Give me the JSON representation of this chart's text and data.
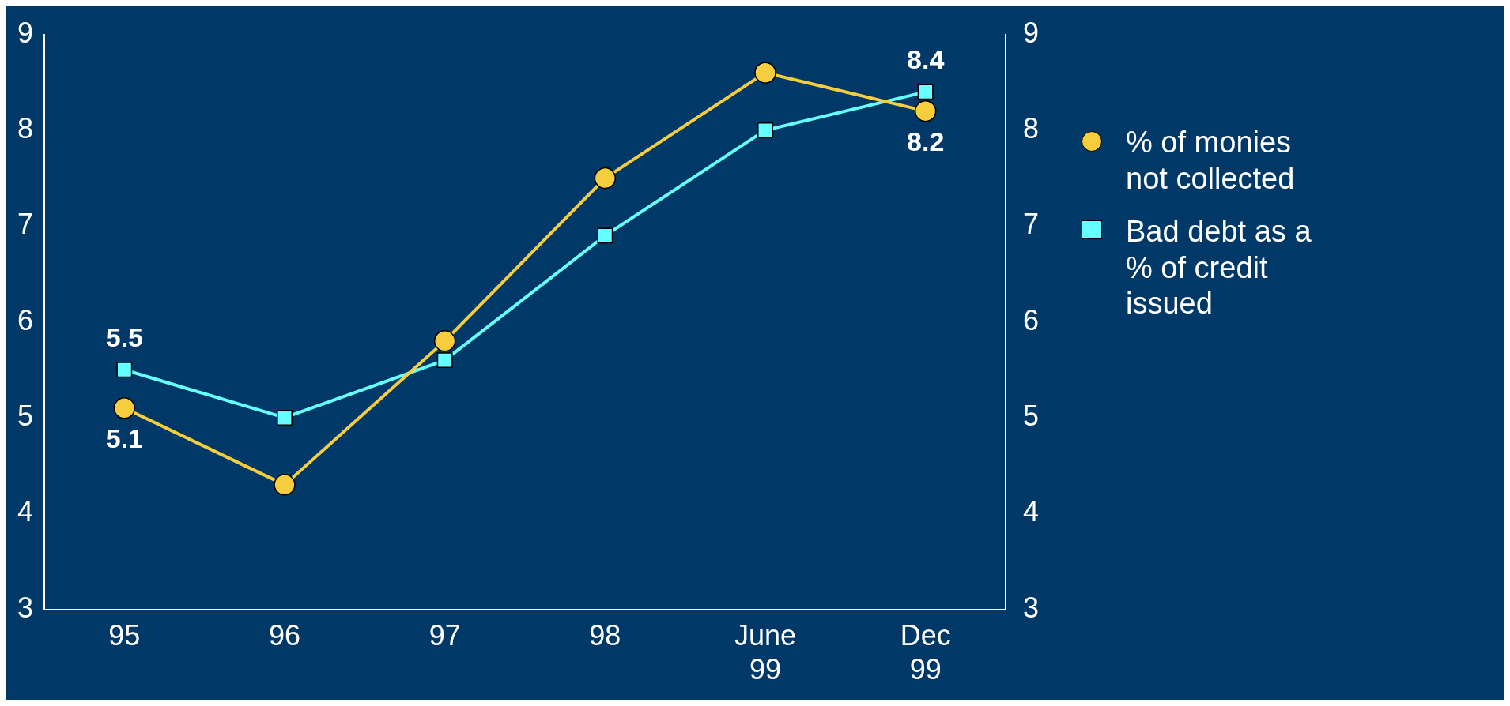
{
  "chart_data": {
    "type": "line",
    "categories": [
      "95",
      "96",
      "97",
      "98",
      "June 99",
      "Dec 99"
    ],
    "series": [
      {
        "name": "% of monies not collected",
        "color": "#f5cd3d",
        "marker": "circle",
        "values": [
          5.1,
          4.3,
          5.8,
          7.5,
          8.6,
          8.2
        ],
        "value_labels": [
          "5.1",
          null,
          null,
          null,
          null,
          "8.2"
        ]
      },
      {
        "name": "Bad debt as a % of credit issued",
        "color": "#66ffff",
        "marker": "square",
        "values": [
          5.5,
          5.0,
          5.6,
          6.9,
          8.0,
          8.4
        ],
        "value_labels": [
          "5.5",
          null,
          null,
          null,
          null,
          "8.4"
        ]
      }
    ],
    "ylim": [
      3,
      9
    ],
    "yticks": [
      3,
      4,
      5,
      6,
      7,
      8,
      9
    ],
    "y2lim": [
      3,
      9
    ],
    "y2ticks": [
      3,
      4,
      5,
      6,
      7,
      8,
      9
    ],
    "grid": false,
    "legend": "right"
  }
}
